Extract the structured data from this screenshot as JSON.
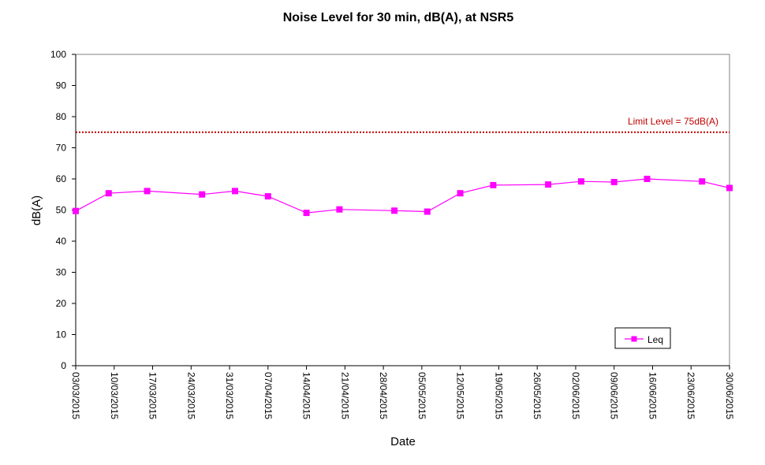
{
  "chart_data": {
    "type": "line",
    "title": "Noise Level for 30 min, dB(A), at NSR5",
    "xlabel": "Date",
    "ylabel": "dB(A)",
    "ylim": [
      0,
      100
    ],
    "yticks": [
      0,
      10,
      20,
      30,
      40,
      50,
      60,
      70,
      80,
      90,
      100
    ],
    "xlim": [
      "2015-03-03",
      "2015-06-30"
    ],
    "xtick_labels": [
      "03/03/2015",
      "10/03/2015",
      "17/03/2015",
      "24/03/2015",
      "31/03/2015",
      "07/04/2015",
      "14/04/2015",
      "21/04/2015",
      "28/04/2015",
      "05/05/2015",
      "12/05/2015",
      "19/05/2015",
      "26/05/2015",
      "02/06/2015",
      "09/06/2015",
      "16/06/2015",
      "23/06/2015",
      "30/06/2015"
    ],
    "xtick_dates": [
      "2015-03-03",
      "2015-03-10",
      "2015-03-17",
      "2015-03-24",
      "2015-03-31",
      "2015-04-07",
      "2015-04-14",
      "2015-04-21",
      "2015-04-28",
      "2015-05-05",
      "2015-05-12",
      "2015-05-19",
      "2015-05-26",
      "2015-06-02",
      "2015-06-09",
      "2015-06-16",
      "2015-06-23",
      "2015-06-30"
    ],
    "grid": false,
    "legend_position": "bottom-right",
    "series": [
      {
        "name": "Leq",
        "color": "#ff00ff",
        "marker": "square",
        "points": [
          {
            "x": "2015-03-03",
            "y": 49.7
          },
          {
            "x": "2015-03-09",
            "y": 55.4
          },
          {
            "x": "2015-03-16",
            "y": 56.1
          },
          {
            "x": "2015-03-26",
            "y": 55.0
          },
          {
            "x": "2015-04-01",
            "y": 56.1
          },
          {
            "x": "2015-04-07",
            "y": 54.4
          },
          {
            "x": "2015-04-14",
            "y": 49.1
          },
          {
            "x": "2015-04-20",
            "y": 50.2
          },
          {
            "x": "2015-04-30",
            "y": 49.8
          },
          {
            "x": "2015-05-06",
            "y": 49.5
          },
          {
            "x": "2015-05-12",
            "y": 55.4
          },
          {
            "x": "2015-05-18",
            "y": 58.0
          },
          {
            "x": "2015-05-28",
            "y": 58.2
          },
          {
            "x": "2015-06-03",
            "y": 59.2
          },
          {
            "x": "2015-06-09",
            "y": 59.0
          },
          {
            "x": "2015-06-15",
            "y": 60.0
          },
          {
            "x": "2015-06-25",
            "y": 59.2
          },
          {
            "x": "2015-06-30",
            "y": 57.1
          }
        ]
      }
    ],
    "reference_lines": [
      {
        "label": "Limit Level  = 75dB(A)",
        "y": 75,
        "color": "#c00000",
        "style": "dotted"
      }
    ]
  }
}
